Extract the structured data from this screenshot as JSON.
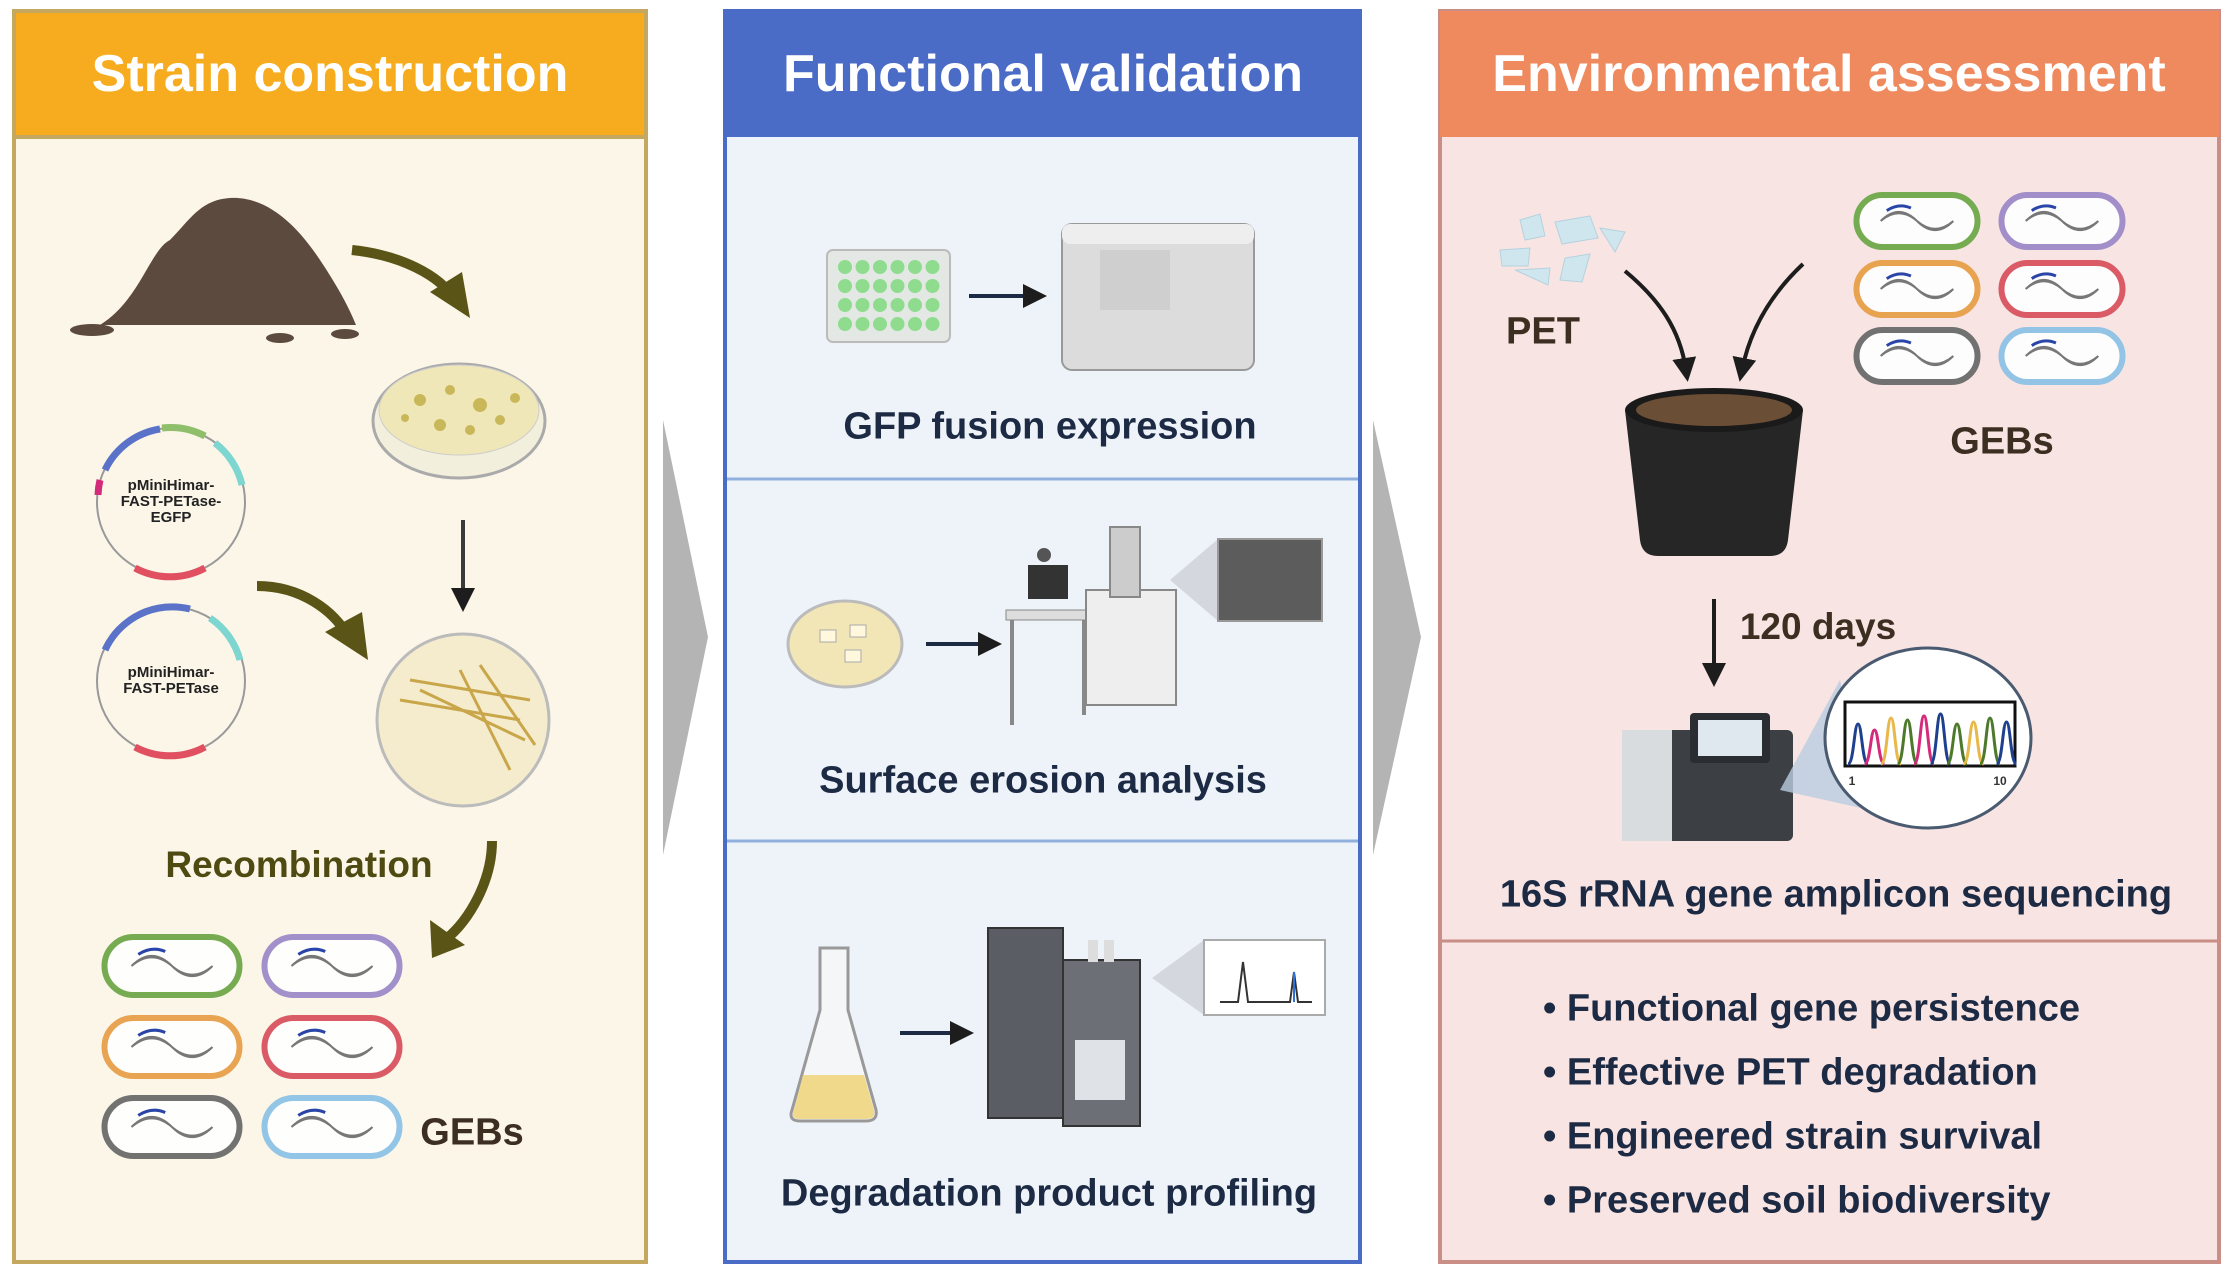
{
  "panels": {
    "strain": {
      "title": "Strain construction",
      "plasmid_1": "pMiniHimar-\nFAST-PETase-\nEGFP",
      "plasmid_2": "pMiniHimar-\nFAST-PETase",
      "recombination": "Recombination",
      "gebs": "GEBs",
      "colors": {
        "header": "#F6AC1E",
        "background": "#FBF6E8",
        "border": "#C4A860",
        "arrow": "#5A5416"
      }
    },
    "functional": {
      "title": "Functional validation",
      "sections": [
        {
          "label": "GFP fusion expression"
        },
        {
          "label": "Surface erosion analysis"
        },
        {
          "label": "Degradation product profiling"
        }
      ],
      "colors": {
        "header": "#4A6BC6",
        "background": "#EEF3FA",
        "border": "#4A6BC6"
      }
    },
    "environmental": {
      "title": "Environmental assessment",
      "pet": "PET",
      "gebs": "GEBs",
      "duration": "120 days",
      "sequencing": "16S rRNA gene amplicon sequencing",
      "chromatogram_ticks": [
        "1",
        "10"
      ],
      "outcomes": [
        "Functional gene persistence",
        "Effective PET degradation",
        "Engineered strain survival",
        "Preserved soil biodiversity"
      ],
      "bullet": "•",
      "colors": {
        "header": "#EE8A5E",
        "background": "#F8E4E3",
        "border": "#C98E86"
      }
    }
  },
  "cell_colors": [
    "#6FA84A",
    "#9E8BC9",
    "#E8A04A",
    "#D9535F",
    "#6B6B6B",
    "#8EC3E6"
  ]
}
